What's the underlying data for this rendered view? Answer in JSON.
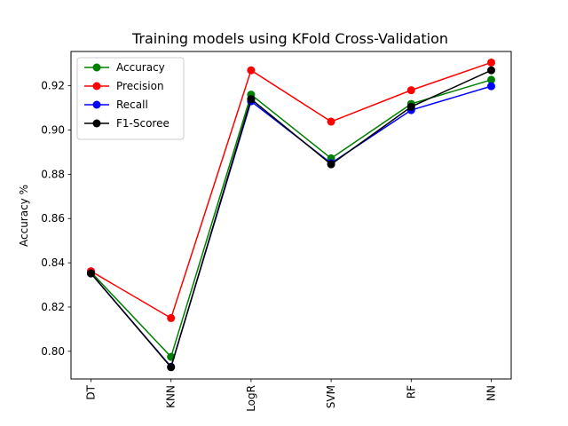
{
  "chart_data": {
    "type": "line",
    "title": "Training models using KFold Cross-Validation",
    "xlabel": "",
    "ylabel": "Accuracy %",
    "categories": [
      "DT",
      "KNN",
      "LogR",
      "SVM",
      "RF",
      "NN"
    ],
    "ylim": [
      0.7875,
      0.9355
    ],
    "yticks": [
      0.8,
      0.82,
      0.84,
      0.86,
      0.88,
      0.9,
      0.92
    ],
    "ytick_labels": [
      "0.80",
      "0.82",
      "0.84",
      "0.86",
      "0.88",
      "0.90",
      "0.92"
    ],
    "grid": false,
    "legend_position": "upper-left",
    "series": [
      {
        "name": "Accuracy",
        "color": "#008000",
        "values": [
          0.8358,
          0.7975,
          0.916,
          0.8872,
          0.9118,
          0.9227
        ]
      },
      {
        "name": "Precision",
        "color": "#ff0000",
        "values": [
          0.8362,
          0.815,
          0.927,
          0.9038,
          0.918,
          0.9305
        ]
      },
      {
        "name": "Recall",
        "color": "#0000ff",
        "values": [
          0.8352,
          0.793,
          0.913,
          0.885,
          0.909,
          0.9198
        ]
      },
      {
        "name": "F1-Scoree",
        "color": "#000000",
        "values": [
          0.8352,
          0.7928,
          0.914,
          0.8845,
          0.9105,
          0.927
        ]
      }
    ]
  }
}
